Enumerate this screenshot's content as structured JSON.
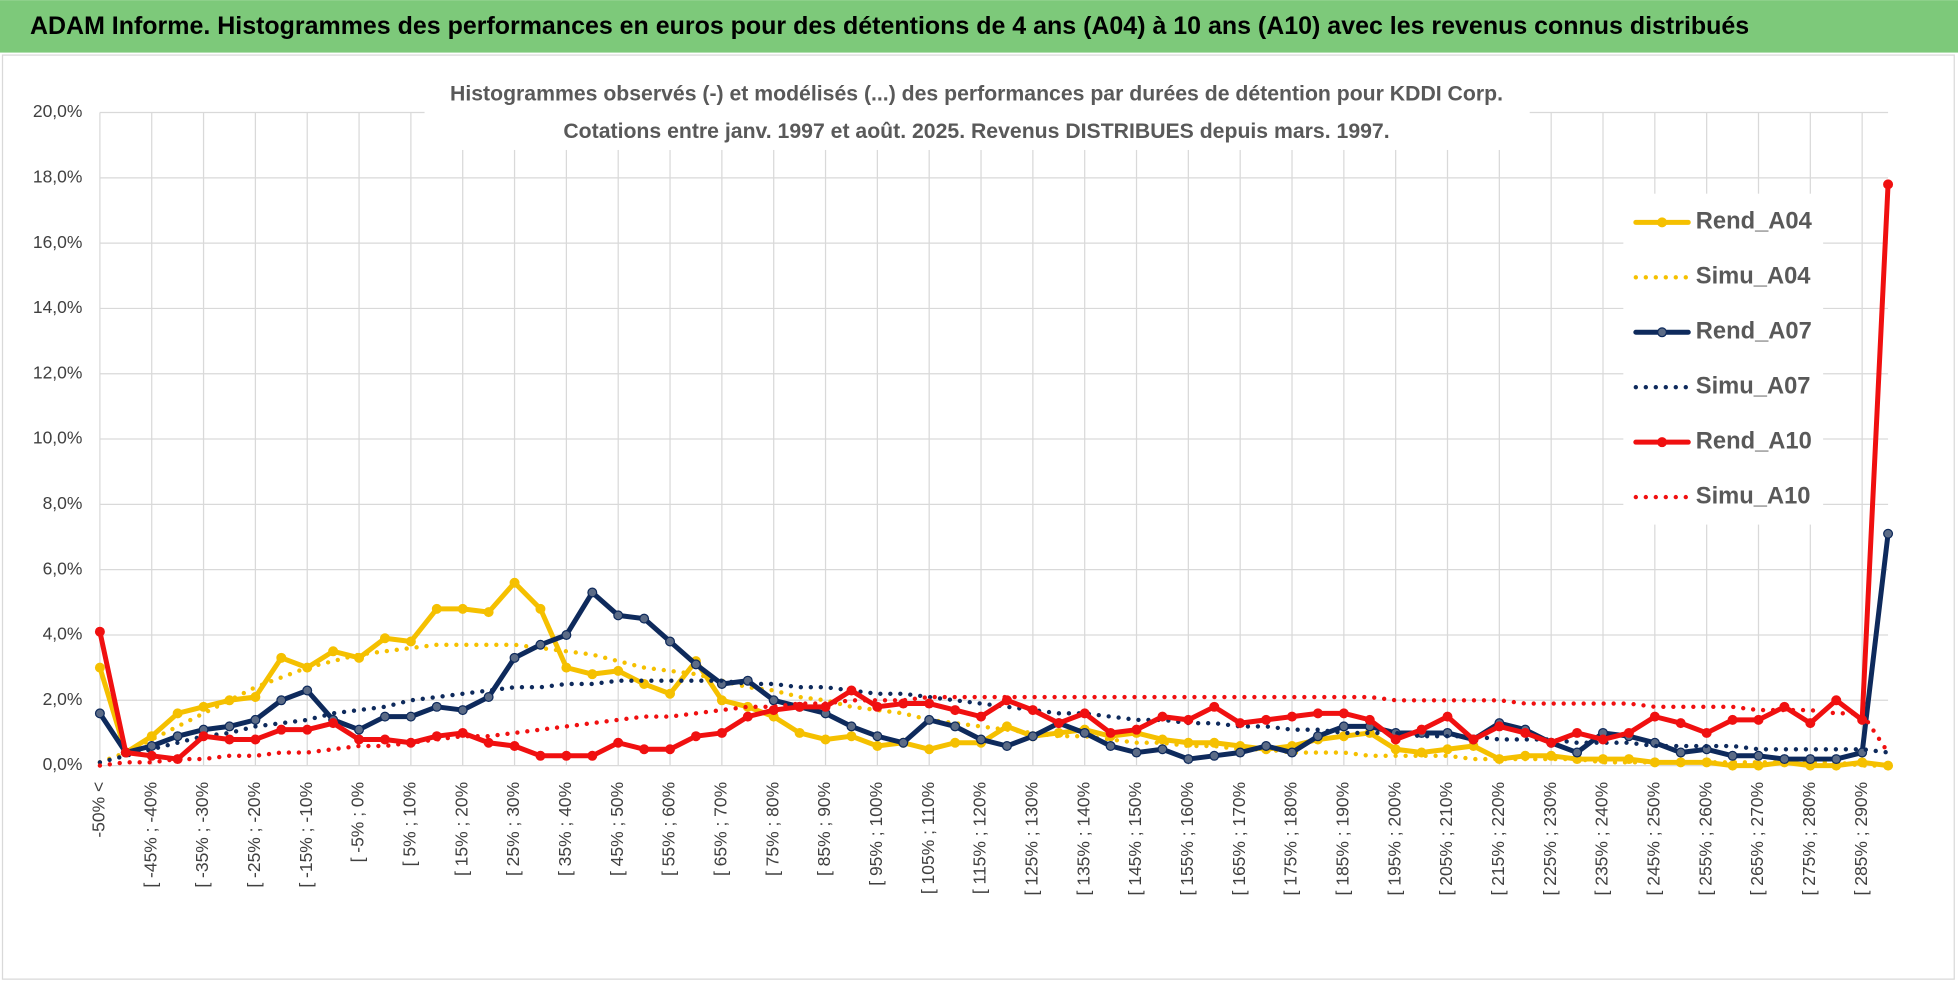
{
  "header": {
    "title": "ADAM Informe. Histogrammes des performances en euros pour des détentions de 4 ans (A04) à 10 ans (A10) avec les revenus connus distribués"
  },
  "chart_data": {
    "type": "line",
    "title": "Histogrammes observés (-) et modélisés (...) des performances par durées de détention pour KDDI Corp.",
    "subtitle": "Cotations entre janv. 1997 et août. 2025. Revenus DISTRIBUES depuis mars. 1997.",
    "categories": [
      "-50% <",
      null,
      "[ -45% ; -40%",
      null,
      "[ -35% ; -30%",
      null,
      "[ -25% ; -20%",
      null,
      "[ -15% ; -10%",
      null,
      "[ -5% ; 0%",
      null,
      "[ 5% ; 10%",
      null,
      "[ 15% ; 20%",
      null,
      "[ 25% ; 30%",
      null,
      "[ 35% ; 40%",
      null,
      "[ 45% ; 50%",
      null,
      "[ 55% ; 60%",
      null,
      "[ 65% ; 70%",
      null,
      "[ 75% ; 80%",
      null,
      "[ 85% ; 90%",
      null,
      "[ 95% ; 100%",
      null,
      "[ 105% ; 110%",
      null,
      "[ 115% ; 120%",
      null,
      "[ 125% ; 130%",
      null,
      "[ 135% ; 140%",
      null,
      "[ 145% ; 150%",
      null,
      "[ 155% ; 160%",
      null,
      "[ 165% ; 170%",
      null,
      "[ 175% ; 180%",
      null,
      "[ 185% ; 190%",
      null,
      "[ 195% ; 200%",
      null,
      "[ 205% ; 210%",
      null,
      "[ 215% ; 220%",
      null,
      "[ 225% ; 230%",
      null,
      "[ 235% ; 240%",
      null,
      "[ 245% ; 250%",
      null,
      "[ 255% ; 260%",
      null,
      "[ 265% ; 270%",
      null,
      "[ 275% ; 280%",
      null,
      "[ 285% ; 290%",
      null
    ],
    "series": [
      {
        "name": "Rend_A04",
        "color": "#f5c000",
        "style": "solid",
        "marker": true,
        "values": [
          3.0,
          0.4,
          0.9,
          1.6,
          1.8,
          2.0,
          2.1,
          3.3,
          3.0,
          3.5,
          3.3,
          3.9,
          3.8,
          4.8,
          4.8,
          4.7,
          5.6,
          4.8,
          3.0,
          2.8,
          2.9,
          2.5,
          2.2,
          3.2,
          2.0,
          1.8,
          1.5,
          1.0,
          0.8,
          0.9,
          0.6,
          0.7,
          0.5,
          0.7,
          0.7,
          1.2,
          0.9,
          1.0,
          1.1,
          0.9,
          1.0,
          0.8,
          0.7,
          0.7,
          0.6,
          0.5,
          0.6,
          0.8,
          0.9,
          1.0,
          0.5,
          0.4,
          0.5,
          0.6,
          0.2,
          0.3,
          0.3,
          0.2,
          0.2,
          0.2,
          0.1,
          0.1,
          0.1,
          0.0,
          0.0,
          0.1,
          0.0,
          0.0,
          0.1,
          0.0
        ]
      },
      {
        "name": "Simu_A04",
        "color": "#f5c000",
        "style": "dotted",
        "marker": false,
        "values": [
          0.1,
          0.4,
          0.8,
          1.2,
          1.6,
          2.0,
          2.4,
          2.7,
          3.0,
          3.2,
          3.4,
          3.5,
          3.6,
          3.7,
          3.7,
          3.7,
          3.7,
          3.6,
          3.5,
          3.4,
          3.2,
          3.0,
          2.9,
          2.8,
          2.6,
          2.4,
          2.3,
          2.1,
          2.0,
          1.8,
          1.7,
          1.6,
          1.4,
          1.3,
          1.2,
          1.1,
          1.0,
          0.9,
          0.9,
          0.8,
          0.7,
          0.7,
          0.6,
          0.6,
          0.5,
          0.5,
          0.4,
          0.4,
          0.4,
          0.3,
          0.3,
          0.3,
          0.3,
          0.2,
          0.2,
          0.2,
          0.2,
          0.2,
          0.1,
          0.1,
          0.1,
          0.1,
          0.1,
          0.1,
          0.1,
          0.1,
          0.1,
          0.1,
          0.0,
          0.0
        ]
      },
      {
        "name": "Rend_A07",
        "color": "#0e2a5c",
        "style": "solid",
        "marker": true,
        "values": [
          1.6,
          0.4,
          0.6,
          0.9,
          1.1,
          1.2,
          1.4,
          2.0,
          2.3,
          1.4,
          1.1,
          1.5,
          1.5,
          1.8,
          1.7,
          2.1,
          3.3,
          3.7,
          4.0,
          5.3,
          4.6,
          4.5,
          3.8,
          3.1,
          2.5,
          2.6,
          2.0,
          1.8,
          1.6,
          1.2,
          0.9,
          0.7,
          1.4,
          1.2,
          0.8,
          0.6,
          0.9,
          1.3,
          1.0,
          0.6,
          0.4,
          0.5,
          0.2,
          0.3,
          0.4,
          0.6,
          0.4,
          0.9,
          1.2,
          1.2,
          1.0,
          1.0,
          1.0,
          0.8,
          1.3,
          1.1,
          0.7,
          0.4,
          1.0,
          0.9,
          0.7,
          0.4,
          0.5,
          0.3,
          0.3,
          0.2,
          0.2,
          0.2,
          0.4,
          7.1
        ]
      },
      {
        "name": "Simu_A07",
        "color": "#0e2a5c",
        "style": "dotted",
        "marker": false,
        "values": [
          0.1,
          0.3,
          0.5,
          0.7,
          0.9,
          1.0,
          1.2,
          1.3,
          1.4,
          1.6,
          1.7,
          1.8,
          2.0,
          2.1,
          2.2,
          2.3,
          2.4,
          2.4,
          2.5,
          2.5,
          2.6,
          2.6,
          2.6,
          2.6,
          2.6,
          2.5,
          2.5,
          2.4,
          2.4,
          2.3,
          2.2,
          2.2,
          2.1,
          2.0,
          1.9,
          1.8,
          1.7,
          1.6,
          1.6,
          1.5,
          1.4,
          1.4,
          1.3,
          1.3,
          1.2,
          1.2,
          1.1,
          1.1,
          1.0,
          1.0,
          1.0,
          0.9,
          0.9,
          0.9,
          0.8,
          0.8,
          0.8,
          0.7,
          0.7,
          0.7,
          0.6,
          0.6,
          0.6,
          0.6,
          0.5,
          0.5,
          0.5,
          0.5,
          0.5,
          0.4
        ]
      },
      {
        "name": "Rend_A10",
        "color": "#f01010",
        "style": "solid",
        "marker": true,
        "values": [
          4.1,
          0.4,
          0.3,
          0.2,
          0.9,
          0.8,
          0.8,
          1.1,
          1.1,
          1.3,
          0.8,
          0.8,
          0.7,
          0.9,
          1.0,
          0.7,
          0.6,
          0.3,
          0.3,
          0.3,
          0.7,
          0.5,
          0.5,
          0.9,
          1.0,
          1.5,
          1.7,
          1.8,
          1.8,
          2.3,
          1.8,
          1.9,
          1.9,
          1.7,
          1.5,
          2.0,
          1.7,
          1.3,
          1.6,
          1.0,
          1.1,
          1.5,
          1.4,
          1.8,
          1.3,
          1.4,
          1.5,
          1.6,
          1.6,
          1.4,
          0.8,
          1.1,
          1.5,
          0.8,
          1.2,
          1.0,
          0.7,
          1.0,
          0.8,
          1.0,
          1.5,
          1.3,
          1.0,
          1.4,
          1.4,
          1.8,
          1.3,
          2.0,
          1.4,
          17.8
        ]
      },
      {
        "name": "Simu_A10",
        "color": "#f01010",
        "style": "dotted",
        "marker": false,
        "values": [
          0.0,
          0.1,
          0.1,
          0.2,
          0.2,
          0.3,
          0.3,
          0.4,
          0.4,
          0.5,
          0.6,
          0.6,
          0.7,
          0.8,
          0.9,
          0.9,
          1.0,
          1.1,
          1.2,
          1.3,
          1.4,
          1.5,
          1.5,
          1.6,
          1.7,
          1.8,
          1.8,
          1.9,
          1.9,
          2.0,
          2.0,
          2.0,
          2.1,
          2.1,
          2.1,
          2.1,
          2.1,
          2.1,
          2.1,
          2.1,
          2.1,
          2.1,
          2.1,
          2.1,
          2.1,
          2.1,
          2.1,
          2.1,
          2.1,
          2.1,
          2.0,
          2.0,
          2.0,
          2.0,
          2.0,
          1.9,
          1.9,
          1.9,
          1.9,
          1.9,
          1.8,
          1.8,
          1.8,
          1.8,
          1.7,
          1.7,
          1.7,
          1.6,
          1.6,
          0.4
        ]
      }
    ],
    "ylim": [
      0,
      20
    ],
    "yticks": [
      {
        "value": 0,
        "label": "0,0%"
      },
      {
        "value": 2,
        "label": "2,0%"
      },
      {
        "value": 4,
        "label": "4,0%"
      },
      {
        "value": 6,
        "label": "6,0%"
      },
      {
        "value": 8,
        "label": "8,0%"
      },
      {
        "value": 10,
        "label": "10,0%"
      },
      {
        "value": 12,
        "label": "12,0%"
      },
      {
        "value": 14,
        "label": "14,0%"
      },
      {
        "value": 16,
        "label": "16,0%"
      },
      {
        "value": 18,
        "label": "18,0%"
      },
      {
        "value": 20,
        "label": "20,0%"
      }
    ],
    "grid": true,
    "legend": "right"
  }
}
